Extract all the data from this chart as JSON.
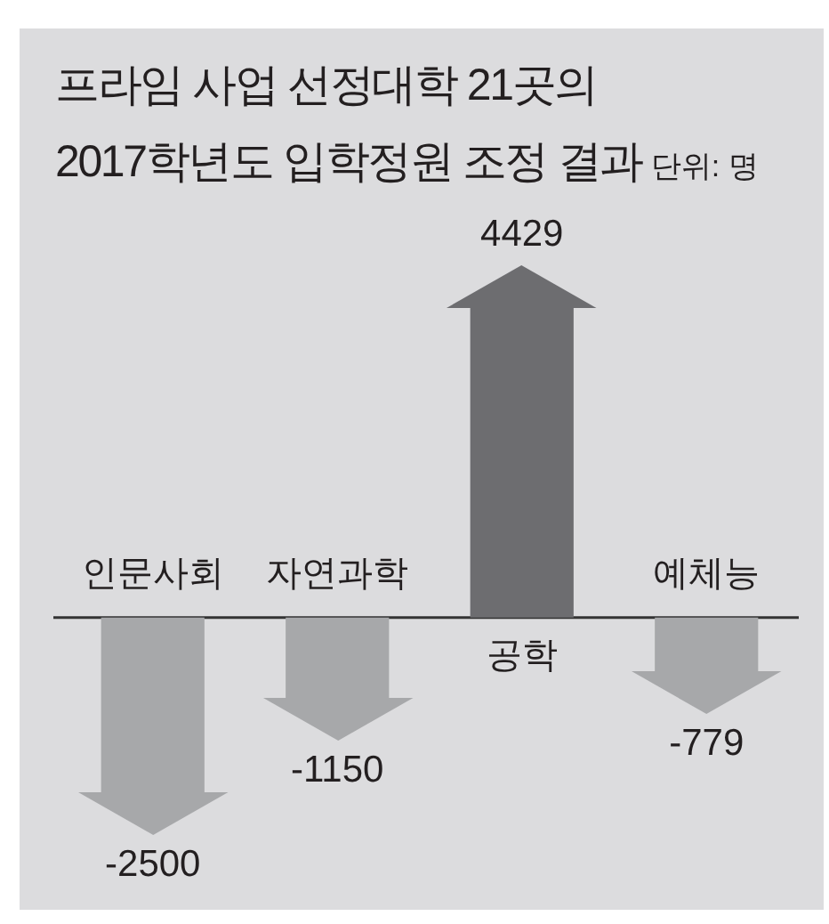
{
  "chart_data": {
    "type": "bar",
    "title": "프라임 사업 선정대학 21곳의\n2017학년도 입학정원 조정 결과",
    "annotations": [
      "단위: 명"
    ],
    "categories": [
      "인문사회",
      "자연과학",
      "공학",
      "예체능"
    ],
    "values": [
      -2500,
      -1150,
      4429,
      -779
    ],
    "colors": [
      "#a7a8aa",
      "#a7a8aa",
      "#6d6d70",
      "#a7a8aa"
    ],
    "data_labels": true,
    "tick_labels": "x"
  }
}
